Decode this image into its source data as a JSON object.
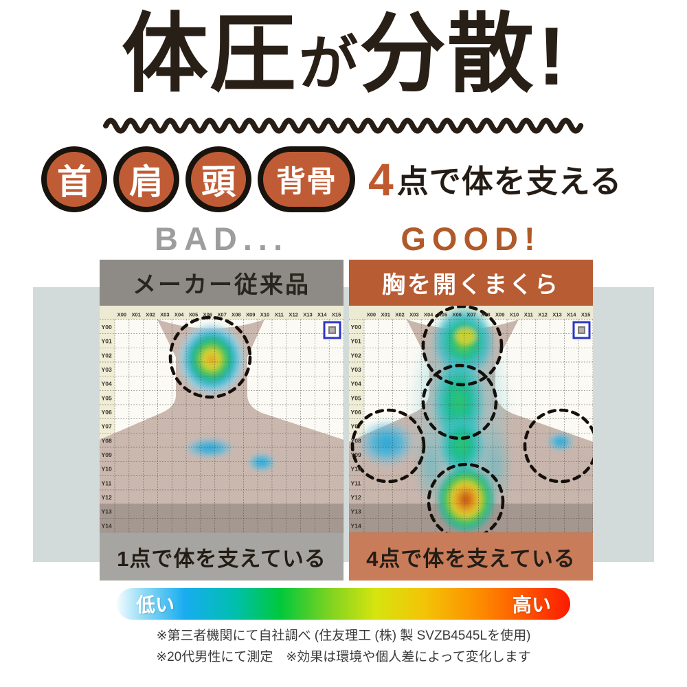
{
  "title": "体圧が分散!",
  "title_parts": {
    "big1": "体圧",
    "small": "が",
    "big2": "分散",
    "bang": "!"
  },
  "subtitle": {
    "badges": [
      "首",
      "肩",
      "頭",
      "背骨"
    ],
    "highlight_number": "4",
    "text": "点で体を支える"
  },
  "comparison": {
    "bad": {
      "verdict": "BAD...",
      "header": "メーカー従来品",
      "caption": "1点で体を支えている"
    },
    "good": {
      "verdict": "GOOD!",
      "header": "胸を開くまくら",
      "caption": "4点で体を支えている"
    }
  },
  "pressure_map": {
    "x_labels": [
      "X00",
      "X01",
      "X02",
      "X03",
      "X04",
      "X05",
      "X06",
      "X07",
      "X08",
      "X09",
      "X10",
      "X11",
      "X12",
      "X13",
      "X14",
      "X15"
    ],
    "y_labels": [
      "Y00",
      "Y01",
      "Y02",
      "Y03",
      "Y04",
      "Y05",
      "Y06",
      "Y07",
      "Y08",
      "Y09",
      "Y10",
      "Y11",
      "Y12",
      "Y13",
      "Y14"
    ]
  },
  "legend": {
    "low": "低い",
    "high": "高い"
  },
  "footnotes": [
    "※第三者機関にて自社調べ (住友理工 (株) 製 SVZB4545Lを使用)",
    "※20代男性にて測定　※効果は環境や個人差によって変化します"
  ],
  "colors": {
    "ink": "#281f16",
    "accent_terracotta": "#b75c33",
    "badge_fill": "#c05c35",
    "bad_gray": "#9d9d9d",
    "left_header_gray": "#8e8b87",
    "left_footer_gray": "#a7a5a1",
    "right_footer_salmon": "#c97c5a",
    "band_bluegray": "#d2dbd9",
    "body_silhouette": "#cab8af",
    "label_cream": "#f0edd7"
  },
  "chart_data": [
    {
      "type": "heatmap",
      "title": "メーカー従来品",
      "x_range": [
        "X00",
        "X15"
      ],
      "y_range": [
        "Y00",
        "Y14"
      ],
      "support_points": 1,
      "hotspots": [
        {
          "area": "首・うなじ",
          "x": "X05-X08",
          "y": "Y00-Y05",
          "intensity": "high",
          "peak_color": "yellow-orange",
          "circled": true
        },
        {
          "area": "背中中央",
          "x": "X06-X07",
          "y": "Y09",
          "intensity": "low",
          "peak_color": "light-blue",
          "circled": false
        },
        {
          "area": "背中右",
          "x": "X10",
          "y": "Y10",
          "intensity": "low",
          "peak_color": "light-blue",
          "circled": false
        }
      ]
    },
    {
      "type": "heatmap",
      "title": "胸を開くまくら",
      "x_range": [
        "X00",
        "X15"
      ],
      "y_range": [
        "Y00",
        "Y14"
      ],
      "support_points": 4,
      "hotspots": [
        {
          "area": "頭",
          "x": "X05-X08",
          "y": "Y00-Y03",
          "intensity": "medium",
          "peak_color": "yellow-green",
          "circled": true
        },
        {
          "area": "首",
          "x": "X05-X08",
          "y": "Y04-Y07",
          "intensity": "medium",
          "peak_color": "green",
          "circled": true
        },
        {
          "area": "左肩",
          "x": "X00-X03",
          "y": "Y08-Y10",
          "intensity": "low",
          "peak_color": "blue",
          "circled": true
        },
        {
          "area": "右肩",
          "x": "X13-X15",
          "y": "Y09",
          "intensity": "low",
          "peak_color": "blue",
          "circled": true
        },
        {
          "area": "背骨・背中下部",
          "x": "X05-X09",
          "y": "Y11-Y14",
          "intensity": "high",
          "peak_color": "orange-red",
          "circled": true
        }
      ]
    }
  ]
}
